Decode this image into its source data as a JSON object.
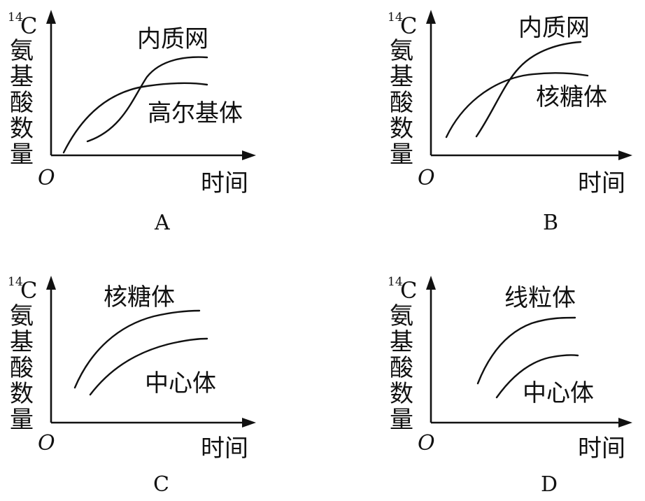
{
  "panels": [
    {
      "id": "A",
      "letter": "A",
      "ylabel_prefix": "14",
      "ylabel_prefix_letter": "C",
      "ylabel_chars": [
        "氨",
        "基",
        "酸",
        "数",
        "量"
      ],
      "origin": "O",
      "xlabel": "时间",
      "curves": [
        {
          "label": "内质网"
        },
        {
          "label": "高尔基体"
        }
      ]
    },
    {
      "id": "B",
      "letter": "B",
      "ylabel_prefix": "14",
      "ylabel_prefix_letter": "C",
      "ylabel_chars": [
        "氨",
        "基",
        "酸",
        "数",
        "量"
      ],
      "origin": "O",
      "xlabel": "时间",
      "curves": [
        {
          "label": "内质网"
        },
        {
          "label": "核糖体"
        }
      ]
    },
    {
      "id": "C",
      "letter": "C",
      "ylabel_prefix": "14",
      "ylabel_prefix_letter": "C",
      "ylabel_chars": [
        "氨",
        "基",
        "酸",
        "数",
        "量"
      ],
      "origin": "O",
      "xlabel": "时间",
      "curves": [
        {
          "label": "核糖体"
        },
        {
          "label": "中心体"
        }
      ]
    },
    {
      "id": "D",
      "letter": "D",
      "ylabel_prefix": "14",
      "ylabel_prefix_letter": "C",
      "ylabel_chars": [
        "氨",
        "基",
        "酸",
        "数",
        "量"
      ],
      "origin": "O",
      "xlabel": "时间",
      "curves": [
        {
          "label": "线粒体"
        },
        {
          "label": "中心体"
        }
      ]
    }
  ]
}
